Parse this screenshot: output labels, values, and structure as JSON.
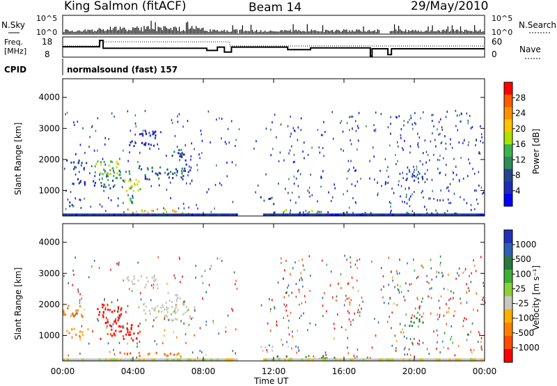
{
  "header": {
    "station": "King Salmon (fitACF)",
    "beam": "Beam 14",
    "date": "29/May/2010"
  },
  "top_panels": {
    "nsky_label": "N.Sky",
    "nsky_ticks": [
      "10^5",
      "10^0"
    ],
    "nsearch_label": "N.Search",
    "freq_label_line1": "Freq.",
    "freq_label_line2": "[MHz]",
    "freq_ticks": [
      "18",
      "8"
    ],
    "nave_label": "Nave",
    "nave_ticks": [
      "60",
      "0"
    ],
    "cpid_label": "CPID",
    "cpid_value": "normalsound (fast) 157"
  },
  "power_panel": {
    "ylabel": "Slant Range [km]",
    "yticks": [
      "4000",
      "3000",
      "2000",
      "1000"
    ],
    "colorbar_label": "Power [dB]",
    "colorbar_ticks": [
      "28",
      "24",
      "20",
      "16",
      "12",
      "8",
      "4"
    ],
    "colors": [
      "#ff0000",
      "#ff5a00",
      "#ff9100",
      "#ffc400",
      "#aee000",
      "#3cb44b",
      "#2e8b57",
      "#24468c",
      "#1f2bb8",
      "#0000ff"
    ]
  },
  "velocity_panel": {
    "ylabel": "Slant Range [km]",
    "yticks": [
      "4000",
      "3000",
      "2000",
      "1000"
    ],
    "colorbar_label": "Velocity [m s⁻¹]",
    "colorbar_ticks": [
      "1000",
      "500",
      "100",
      "25",
      "-25",
      "-100",
      "-500",
      "-1000"
    ],
    "colors": [
      "#2430b8",
      "#2e5fb4",
      "#277a3a",
      "#3fae37",
      "#8ed03a",
      "#c8c8c0",
      "#ffb000",
      "#ff8000",
      "#ff4d00",
      "#ff0000"
    ]
  },
  "xaxis": {
    "label": "Time UT",
    "ticks": [
      "00:00",
      "04:00",
      "08:00",
      "12:00",
      "16:00",
      "20:00",
      "00:00"
    ]
  },
  "chart_data": [
    {
      "type": "heatmap",
      "title": "Power",
      "xlabel": "Time UT",
      "ylabel": "Slant Range [km]",
      "xlim": [
        0,
        24
      ],
      "ylim": [
        180,
        4600
      ],
      "colorbar": {
        "label": "Power [dB]",
        "ticks": [
          4,
          8,
          12,
          16,
          20,
          24,
          28
        ]
      },
      "blobs": [
        {
          "t": 0.8,
          "r": 1850,
          "dt": 0.6,
          "dr": 180,
          "v": 8
        },
        {
          "t": 1.2,
          "r": 1300,
          "dt": 0.7,
          "dr": 120,
          "v": 6
        },
        {
          "t": 0.7,
          "r": 550,
          "dt": 0.4,
          "dr": 100,
          "v": 10
        },
        {
          "t": 2.5,
          "r": 1750,
          "dt": 0.7,
          "dr": 260,
          "v": 18
        },
        {
          "t": 3.0,
          "r": 1400,
          "dt": 0.9,
          "dr": 300,
          "v": 12
        },
        {
          "t": 3.9,
          "r": 1150,
          "dt": 0.5,
          "dr": 250,
          "v": 18
        },
        {
          "t": 3.5,
          "r": 750,
          "dt": 0.5,
          "dr": 120,
          "v": 14
        },
        {
          "t": 4.5,
          "r": 2700,
          "dt": 0.8,
          "dr": 250,
          "v": 6
        },
        {
          "t": 5.8,
          "r": 1600,
          "dt": 1.5,
          "dr": 220,
          "v": 10
        },
        {
          "t": 6.5,
          "r": 2100,
          "dt": 0.5,
          "dr": 250,
          "v": 9
        },
        {
          "t": 5.0,
          "r": 380,
          "dt": 1.4,
          "dr": 60,
          "v": 22
        },
        {
          "t": 6.5,
          "r": 320,
          "dt": 0.9,
          "dr": 50,
          "v": 18
        },
        {
          "t": 11.6,
          "r": 700,
          "dt": 0.4,
          "dr": 120,
          "v": 10
        },
        {
          "t": 13.5,
          "r": 350,
          "dt": 1.2,
          "dr": 60,
          "v": 16
        },
        {
          "t": 16.0,
          "r": 300,
          "dt": 1.5,
          "dr": 50,
          "v": 10
        },
        {
          "t": 20.0,
          "r": 1500,
          "dt": 0.6,
          "dr": 150,
          "v": 10
        },
        {
          "t": 21.5,
          "r": 280,
          "dt": 2.0,
          "dr": 40,
          "v": 10
        }
      ]
    },
    {
      "type": "heatmap",
      "title": "Velocity",
      "xlabel": "Time UT",
      "ylabel": "Slant Range [km]",
      "xlim": [
        0,
        24
      ],
      "ylim": [
        180,
        4600
      ],
      "colorbar": {
        "label": "Velocity [m s⁻¹]",
        "ticks": [
          -1000,
          -500,
          -100,
          -25,
          25,
          100,
          500,
          1000
        ]
      },
      "blobs": [
        {
          "t": 0.6,
          "r": 1800,
          "dt": 0.6,
          "dr": 200,
          "v": -120
        },
        {
          "t": 0.8,
          "r": 1100,
          "dt": 0.6,
          "dr": 150,
          "v": -60
        },
        {
          "t": 2.6,
          "r": 1750,
          "dt": 0.7,
          "dr": 280,
          "v": -600
        },
        {
          "t": 3.2,
          "r": 1300,
          "dt": 0.8,
          "dr": 300,
          "v": -400
        },
        {
          "t": 3.9,
          "r": 1100,
          "dt": 0.5,
          "dr": 250,
          "v": -500
        },
        {
          "t": 5.2,
          "r": 400,
          "dt": 1.6,
          "dr": 80,
          "v": -150
        },
        {
          "t": 4.5,
          "r": 2750,
          "dt": 0.9,
          "dr": 220,
          "v": 0
        },
        {
          "t": 6.0,
          "r": 1800,
          "dt": 1.5,
          "dr": 300,
          "v": 5
        },
        {
          "t": 6.3,
          "r": 2200,
          "dt": 0.5,
          "dr": 200,
          "v": 0
        },
        {
          "t": 11.6,
          "r": 600,
          "dt": 0.4,
          "dr": 120,
          "v": 0
        },
        {
          "t": 13.5,
          "r": 320,
          "dt": 1.4,
          "dr": 60,
          "v": 150
        },
        {
          "t": 16.0,
          "r": 280,
          "dt": 1.5,
          "dr": 40,
          "v": 120
        },
        {
          "t": 20.0,
          "r": 1450,
          "dt": 0.5,
          "dr": 150,
          "v": 300
        },
        {
          "t": 21.5,
          "r": 260,
          "dt": 2.0,
          "dr": 40,
          "v": 0
        }
      ]
    }
  ]
}
